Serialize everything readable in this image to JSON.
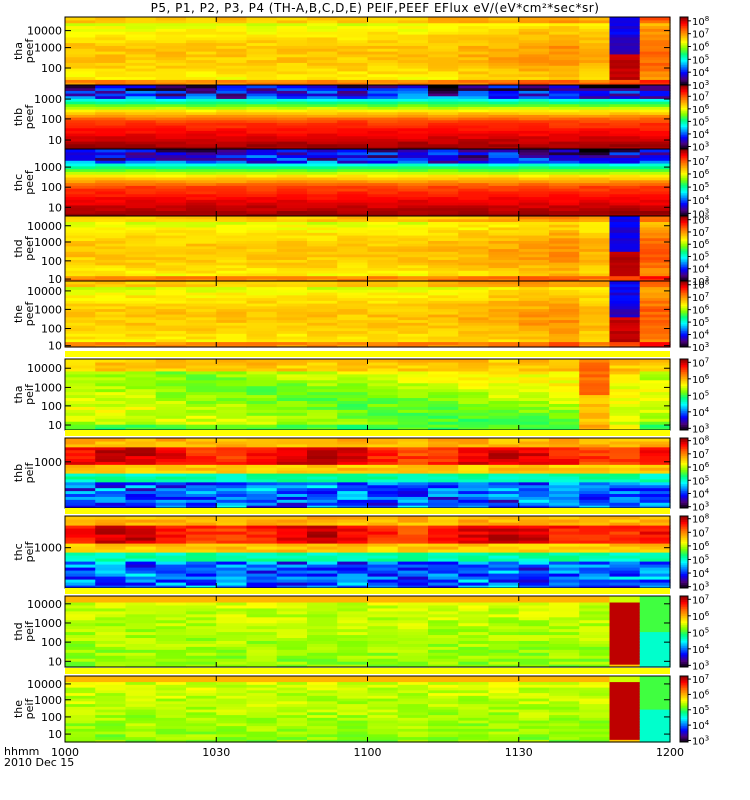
{
  "title": "P5, P1, P2, P3, P4 (TH-A,B,C,D,E) PEIF,PEEF EFlux eV/(eV*cm²*sec*sr)",
  "footer": {
    "axis_unit": "hhmm",
    "date": "2010 Dec 15"
  },
  "colors": {
    "cmap": [
      "#000000",
      "#4a0080",
      "#0000ff",
      "#0080ff",
      "#00ffff",
      "#00ff80",
      "#80ff00",
      "#ffff00",
      "#ffb000",
      "#ff6000",
      "#ff0000",
      "#8b0000"
    ]
  },
  "chart_data": {
    "type": "heatmap",
    "x_axis": {
      "ticks": [
        "1000",
        "1030",
        "1100",
        "1130",
        "1200"
      ],
      "tick_values": [
        0,
        30,
        60,
        90,
        120
      ],
      "range": [
        0,
        120
      ],
      "unit": "minutes after 10:00"
    },
    "panels": [
      {
        "name": "tha peef",
        "ylabels": [
          "tha",
          "peef"
        ],
        "yticks": [
          "10000",
          "1000",
          "100"
        ],
        "ytick_pos": [
          0.8,
          0.55,
          0.25
        ],
        "cbar_ticks": [
          [
            "10",
            "8"
          ],
          [
            "10",
            "7"
          ],
          [
            "10",
            "6"
          ],
          [
            "10",
            "5"
          ],
          [
            "10",
            "4"
          ],
          [
            "10",
            "3"
          ]
        ],
        "cbar_range": [
          3,
          8.3
        ]
      },
      {
        "name": "thb peef",
        "ylabels": [
          "thb",
          "peef"
        ],
        "yticks": [
          "1000",
          "100",
          "10"
        ],
        "ytick_pos": [
          0.78,
          0.47,
          0.14
        ],
        "cbar_ticks": [
          [
            "10",
            "7"
          ],
          [
            "10",
            "6"
          ],
          [
            "10",
            "5"
          ],
          [
            "10",
            "4"
          ],
          [
            "10",
            "3"
          ]
        ],
        "cbar_range": [
          2.8,
          7.9
        ]
      },
      {
        "name": "thc peef",
        "ylabels": [
          "thc",
          "peef"
        ],
        "yticks": [
          "1000",
          "100",
          "10"
        ],
        "ytick_pos": [
          0.73,
          0.43,
          0.13
        ],
        "cbar_ticks": [
          [
            "10",
            "7"
          ],
          [
            "10",
            "6"
          ],
          [
            "10",
            "5"
          ],
          [
            "10",
            "4"
          ],
          [
            "10",
            "3"
          ]
        ],
        "cbar_range": [
          2.8,
          7.9
        ]
      },
      {
        "name": "thd peef",
        "ylabels": [
          "thd",
          "peef"
        ],
        "yticks": [
          "10000",
          "1000",
          "100",
          "10"
        ],
        "ytick_pos": [
          0.85,
          0.6,
          0.31,
          0.03
        ],
        "cbar_ticks": [
          [
            "10",
            "8"
          ],
          [
            "10",
            "7"
          ],
          [
            "10",
            "6"
          ],
          [
            "10",
            "5"
          ],
          [
            "10",
            "4"
          ],
          [
            "10",
            "3"
          ]
        ],
        "cbar_range": [
          3,
          8.3
        ]
      },
      {
        "name": "the peef",
        "ylabels": [
          "the",
          "peef"
        ],
        "yticks": [
          "10000",
          "1000",
          "100",
          "10"
        ],
        "ytick_pos": [
          0.85,
          0.57,
          0.28,
          0.02
        ],
        "cbar_ticks": [
          [
            "10",
            "8"
          ],
          [
            "10",
            "7"
          ],
          [
            "10",
            "6"
          ],
          [
            "10",
            "5"
          ],
          [
            "10",
            "4"
          ],
          [
            "10",
            "3"
          ]
        ],
        "cbar_range": [
          3,
          8.3
        ]
      },
      {
        "name": "tha peif",
        "ylabels": [
          "tha",
          "peif"
        ],
        "yticks": [
          "10000",
          "1000",
          "100",
          "10"
        ],
        "ytick_pos": [
          0.87,
          0.6,
          0.34,
          0.07
        ],
        "cbar_ticks": [
          [
            "10",
            "7"
          ],
          [
            "10",
            "6"
          ],
          [
            "10",
            "5"
          ],
          [
            "10",
            "4"
          ],
          [
            "10",
            "3"
          ]
        ],
        "cbar_range": [
          2.9,
          7.2
        ]
      },
      {
        "name": "thb peif",
        "ylabels": [
          "thb",
          "peif"
        ],
        "yticks": [
          "1000"
        ],
        "ytick_pos": [
          0.66
        ],
        "cbar_ticks": [
          [
            "10",
            "8"
          ],
          [
            "10",
            "7"
          ],
          [
            "10",
            "6"
          ],
          [
            "10",
            "5"
          ],
          [
            "10",
            "4"
          ],
          [
            "10",
            "3"
          ]
        ],
        "cbar_range": [
          2.9,
          8.2
        ]
      },
      {
        "name": "thc peif",
        "ylabels": [
          "thc",
          "peif"
        ],
        "yticks": [
          "1000"
        ],
        "ytick_pos": [
          0.56
        ],
        "cbar_ticks": [
          [
            "10",
            "8"
          ],
          [
            "10",
            "7"
          ],
          [
            "10",
            "6"
          ],
          [
            "10",
            "5"
          ],
          [
            "10",
            "4"
          ],
          [
            "10",
            "3"
          ]
        ],
        "cbar_range": [
          2.9,
          8.2
        ]
      },
      {
        "name": "thd peif",
        "ylabels": [
          "thd",
          "peif"
        ],
        "yticks": [
          "10000",
          "1000",
          "100",
          "10"
        ],
        "ytick_pos": [
          0.89,
          0.62,
          0.35,
          0.08
        ],
        "cbar_ticks": [
          [
            "10",
            "7"
          ],
          [
            "10",
            "6"
          ],
          [
            "10",
            "5"
          ],
          [
            "10",
            "4"
          ],
          [
            "10",
            "3"
          ]
        ],
        "cbar_range": [
          2.9,
          7.2
        ]
      },
      {
        "name": "the peif",
        "ylabels": [
          "the",
          "peif"
        ],
        "yticks": [
          "10000",
          "1000",
          "100",
          "10"
        ],
        "ytick_pos": [
          0.88,
          0.64,
          0.38,
          0.12
        ],
        "cbar_ticks": [
          [
            "10",
            "7"
          ],
          [
            "10",
            "6"
          ],
          [
            "10",
            "5"
          ],
          [
            "10",
            "4"
          ],
          [
            "10",
            "3"
          ]
        ],
        "cbar_range": [
          2.9,
          7.2
        ]
      }
    ]
  }
}
